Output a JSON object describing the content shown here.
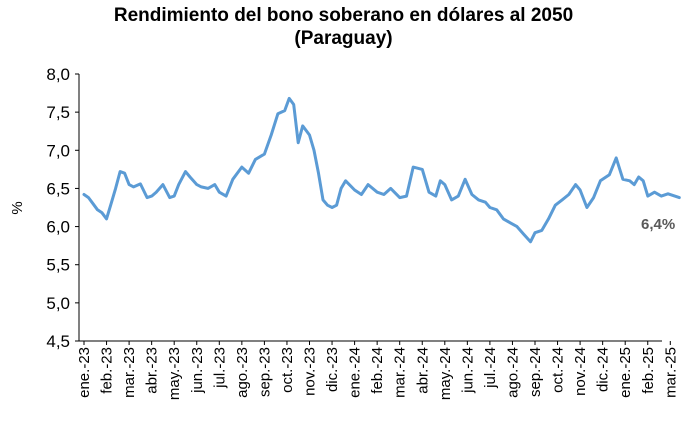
{
  "chart_data": {
    "type": "line",
    "title": "Rendimiento del bono soberano en dólares al 2050",
    "subtitle": "(Paraguay)",
    "xlabel": "",
    "ylabel": "%",
    "ylim": [
      4.5,
      8.0
    ],
    "yticks": [
      "4,5",
      "5,0",
      "5,5",
      "6,0",
      "6,5",
      "7,0",
      "7,5",
      "8,0"
    ],
    "xticks": [
      "ene.-23",
      "feb.-23",
      "mar.-23",
      "abr.-23",
      "may.-23",
      "jun.-23",
      "jul.-23",
      "ago.-23",
      "sep.-23",
      "oct.-23",
      "nov.-23",
      "dic.-23",
      "ene.-24",
      "feb.-24",
      "mar.-24",
      "abr.-24",
      "may.-24",
      "jun.-24",
      "jul.-24",
      "ago.-24",
      "sep.-24",
      "oct.-24",
      "nov.-24",
      "dic.-24",
      "ene.-25",
      "feb.-25",
      "mar.-25"
    ],
    "grid": false,
    "legend": "none",
    "line_color": "#5B9BD5",
    "annotation": "6,4%",
    "series": [
      {
        "x": [
          0,
          0.2,
          0.4,
          0.6,
          0.8,
          1.0,
          1.2,
          1.4,
          1.6,
          1.8,
          2.0,
          2.2,
          2.5,
          2.8,
          3.0,
          3.2,
          3.5,
          3.8,
          4.0,
          4.2,
          4.5,
          4.7,
          5.0,
          5.2,
          5.5,
          5.8,
          6.0,
          6.3,
          6.6,
          7.0,
          7.3,
          7.6,
          8.0,
          8.3,
          8.6,
          8.9,
          9.1,
          9.3,
          9.5,
          9.7,
          10.0,
          10.2,
          10.4,
          10.6,
          10.8,
          11.0,
          11.2,
          11.4,
          11.6,
          12.0,
          12.3,
          12.6,
          13.0,
          13.3,
          13.6,
          14.0,
          14.3,
          14.6,
          15.0,
          15.3,
          15.6,
          15.8,
          16.0,
          16.3,
          16.6,
          16.9,
          17.2,
          17.5,
          17.8,
          18.0,
          18.3,
          18.6,
          18.9,
          19.2,
          19.5,
          19.8,
          20.0,
          20.3,
          20.6,
          20.9,
          21.2,
          21.5,
          21.8,
          22.0,
          22.3,
          22.6,
          22.9,
          23.0,
          23.3,
          23.6,
          23.9,
          24.2,
          24.4,
          24.6,
          24.8,
          25.0,
          25.3,
          25.6,
          25.9,
          26.2,
          26.4
        ],
        "values": [
          6.42,
          6.38,
          6.3,
          6.22,
          6.18,
          6.1,
          6.3,
          6.5,
          6.72,
          6.7,
          6.55,
          6.52,
          6.56,
          6.38,
          6.4,
          6.45,
          6.55,
          6.38,
          6.4,
          6.55,
          6.72,
          6.65,
          6.55,
          6.52,
          6.5,
          6.55,
          6.45,
          6.4,
          6.62,
          6.78,
          6.7,
          6.88,
          6.95,
          7.2,
          7.48,
          7.52,
          7.68,
          7.6,
          7.1,
          7.32,
          7.2,
          7.0,
          6.7,
          6.35,
          6.28,
          6.25,
          6.28,
          6.5,
          6.6,
          6.48,
          6.42,
          6.55,
          6.45,
          6.42,
          6.5,
          6.38,
          6.4,
          6.78,
          6.75,
          6.45,
          6.4,
          6.6,
          6.55,
          6.35,
          6.4,
          6.62,
          6.42,
          6.35,
          6.32,
          6.25,
          6.22,
          6.1,
          6.05,
          6.0,
          5.9,
          5.8,
          5.92,
          5.95,
          6.1,
          6.28,
          6.35,
          6.42,
          6.55,
          6.48,
          6.25,
          6.38,
          6.6,
          6.62,
          6.68,
          6.9,
          6.62,
          6.6,
          6.55,
          6.65,
          6.6,
          6.4,
          6.45,
          6.4,
          6.43,
          6.4,
          6.38
        ]
      }
    ]
  }
}
